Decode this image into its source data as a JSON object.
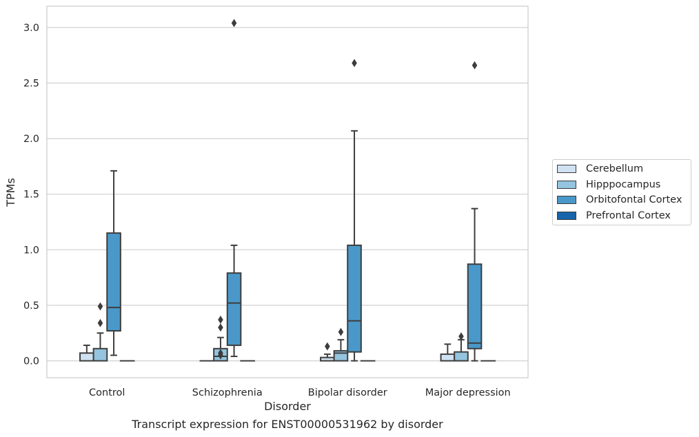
{
  "chart_data": {
    "type": "box",
    "xlabel": "Disorder",
    "ylabel": "TPMs",
    "caption": "Transcript expression for ENST00000531962 by disorder",
    "ylim": [
      -0.15,
      3.2
    ],
    "yticks": [
      0.0,
      0.5,
      1.0,
      1.5,
      2.0,
      2.5,
      3.0
    ],
    "ytick_labels": [
      "0.0",
      "0.5",
      "1.0",
      "1.5",
      "2.0",
      "2.5",
      "3.0"
    ],
    "categories": [
      "Control",
      "Schizophrenia",
      "Bipolar disorder",
      "Major depression"
    ],
    "grid": "horizontal",
    "legend_position": "right",
    "series": [
      {
        "name": "Cerebellum",
        "color": "#d0e1f2",
        "boxes": [
          {
            "q1": 0.0,
            "median": 0.0,
            "q3": 0.07,
            "whisker_low": 0.0,
            "whisker_high": 0.14,
            "outliers": []
          },
          {
            "q1": 0.0,
            "median": 0.0,
            "q3": 0.0,
            "whisker_low": 0.0,
            "whisker_high": 0.0,
            "outliers": []
          },
          {
            "q1": 0.0,
            "median": 0.0,
            "q3": 0.03,
            "whisker_low": 0.0,
            "whisker_high": 0.06,
            "outliers": [
              0.13
            ]
          },
          {
            "q1": 0.0,
            "median": 0.0,
            "q3": 0.06,
            "whisker_low": 0.0,
            "whisker_high": 0.15,
            "outliers": []
          }
        ]
      },
      {
        "name": "Hipppocampus",
        "color": "#94c4df",
        "boxes": [
          {
            "q1": 0.0,
            "median": 0.0,
            "q3": 0.11,
            "whisker_low": 0.0,
            "whisker_high": 0.25,
            "outliers": [
              0.34,
              0.49
            ]
          },
          {
            "q1": 0.0,
            "median": 0.04,
            "q3": 0.11,
            "whisker_low": 0.0,
            "whisker_high": 0.21,
            "outliers": [
              0.05,
              0.07,
              0.3,
              0.37
            ]
          },
          {
            "q1": 0.0,
            "median": 0.07,
            "q3": 0.09,
            "whisker_low": 0.0,
            "whisker_high": 0.19,
            "outliers": [
              0.26
            ]
          },
          {
            "q1": 0.0,
            "median": 0.0,
            "q3": 0.08,
            "whisker_low": 0.0,
            "whisker_high": 0.19,
            "outliers": [
              0.22
            ]
          }
        ]
      },
      {
        "name": "Orbitofontal Cortex",
        "color": "#4a98c9",
        "boxes": [
          {
            "q1": 0.27,
            "median": 0.48,
            "q3": 1.15,
            "whisker_low": 0.05,
            "whisker_high": 1.71,
            "outliers": []
          },
          {
            "q1": 0.14,
            "median": 0.52,
            "q3": 0.79,
            "whisker_low": 0.04,
            "whisker_high": 1.04,
            "outliers": [
              3.04
            ]
          },
          {
            "q1": 0.08,
            "median": 0.36,
            "q3": 1.04,
            "whisker_low": 0.0,
            "whisker_high": 2.07,
            "outliers": [
              2.68
            ]
          },
          {
            "q1": 0.11,
            "median": 0.16,
            "q3": 0.87,
            "whisker_low": 0.0,
            "whisker_high": 1.37,
            "outliers": [
              2.66
            ]
          }
        ]
      },
      {
        "name": "Prefrontal Cortex",
        "color": "#1764ab",
        "boxes": [
          {
            "q1": 0.0,
            "median": 0.0,
            "q3": 0.0,
            "whisker_low": 0.0,
            "whisker_high": 0.0,
            "outliers": []
          },
          {
            "q1": 0.0,
            "median": 0.0,
            "q3": 0.0,
            "whisker_low": 0.0,
            "whisker_high": 0.0,
            "outliers": []
          },
          {
            "q1": 0.0,
            "median": 0.0,
            "q3": 0.0,
            "whisker_low": 0.0,
            "whisker_high": 0.0,
            "outliers": []
          },
          {
            "q1": 0.0,
            "median": 0.0,
            "q3": 0.0,
            "whisker_low": 0.0,
            "whisker_high": 0.0,
            "outliers": []
          }
        ]
      }
    ]
  }
}
